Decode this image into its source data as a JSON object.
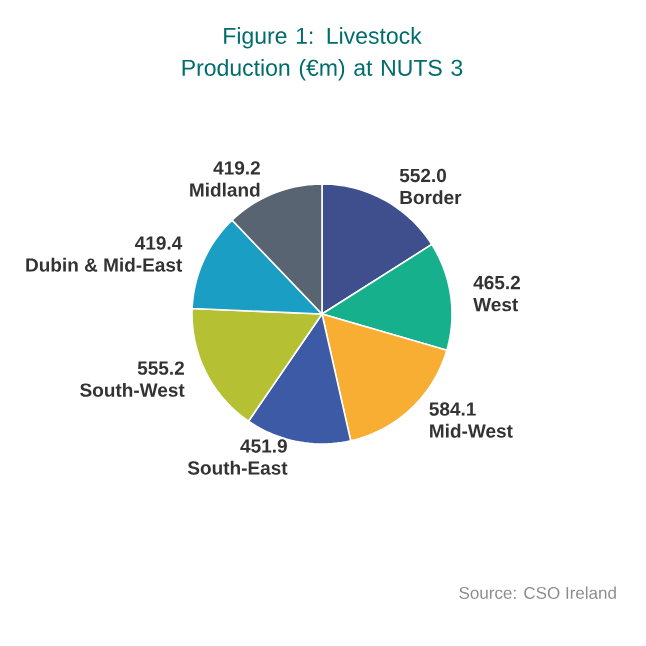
{
  "chart_data": {
    "type": "pie",
    "title": "Figure 1: Livestock Production (€m) at NUTS 3",
    "categories": [
      "Border",
      "West",
      "Mid-West",
      "South-East",
      "South-West",
      "Dubin & Mid-East",
      "Midland"
    ],
    "values": [
      552.0,
      465.2,
      584.1,
      451.9,
      555.2,
      419.4,
      419.2
    ],
    "value_labels": [
      "552.0",
      "465.2",
      "584.1",
      "451.9",
      "555.2",
      "419.4",
      "419.2"
    ],
    "colors": [
      "#3f4e8c",
      "#17b08c",
      "#f8ad33",
      "#3d5aa6",
      "#b5c133",
      "#1a9ec3",
      "#586471"
    ],
    "annotations": [
      "Source: CSO Ireland"
    ]
  }
}
